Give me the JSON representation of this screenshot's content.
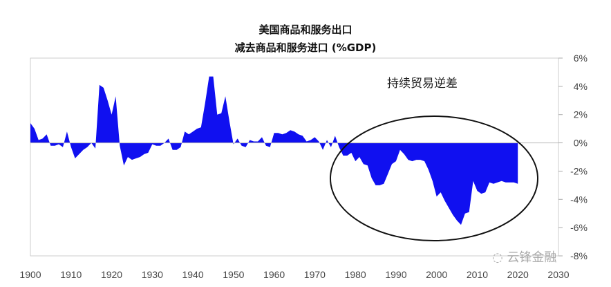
{
  "chart_data": {
    "type": "area",
    "title": [
      "美国商品和服务出口",
      "减去商品和服务进口 (%GDP)"
    ],
    "xlabel": "",
    "ylabel": "",
    "xlim": [
      1900,
      2030
    ],
    "ylim": [
      -8,
      6
    ],
    "x_ticks": [
      "1900",
      "1910",
      "1920",
      "1930",
      "1940",
      "1950",
      "1960",
      "1970",
      "1980",
      "1990",
      "2000",
      "2010",
      "2020",
      "2030"
    ],
    "y_ticks": [
      "6%",
      "4%",
      "2%",
      "0%",
      "-2%",
      "-4%",
      "-6%",
      "-8%"
    ],
    "y_tick_values": [
      6,
      4,
      2,
      0,
      -2,
      -4,
      -6,
      -8
    ],
    "y_axis_side": "right",
    "fill_color": "#1010f0",
    "annotation": "持续贸易逆差",
    "annotation_highlight_years": [
      1976,
      2025
    ],
    "x": [
      1900,
      1901,
      1902,
      1903,
      1904,
      1905,
      1906,
      1907,
      1908,
      1909,
      1910,
      1911,
      1912,
      1913,
      1914,
      1915,
      1916,
      1917,
      1918,
      1919,
      1920,
      1921,
      1922,
      1923,
      1924,
      1925,
      1926,
      1927,
      1928,
      1929,
      1930,
      1931,
      1932,
      1933,
      1934,
      1935,
      1936,
      1937,
      1938,
      1939,
      1940,
      1941,
      1942,
      1943,
      1944,
      1945,
      1946,
      1947,
      1948,
      1949,
      1950,
      1951,
      1952,
      1953,
      1954,
      1955,
      1956,
      1957,
      1958,
      1959,
      1960,
      1961,
      1962,
      1963,
      1964,
      1965,
      1966,
      1967,
      1968,
      1969,
      1970,
      1971,
      1972,
      1973,
      1974,
      1975,
      1976,
      1977,
      1978,
      1979,
      1980,
      1981,
      1982,
      1983,
      1984,
      1985,
      1986,
      1987,
      1988,
      1989,
      1990,
      1991,
      1992,
      1993,
      1994,
      1995,
      1996,
      1997,
      1998,
      1999,
      2000,
      2001,
      2002,
      2003,
      2004,
      2005,
      2006,
      2007,
      2008,
      2009,
      2010,
      2011,
      2012,
      2013,
      2014,
      2015,
      2016,
      2017,
      2018,
      2019,
      2020
    ],
    "values": [
      1.4,
      1.0,
      0.2,
      0.3,
      0.6,
      -0.2,
      -0.2,
      -0.1,
      -0.3,
      0.8,
      -0.3,
      -1.1,
      -0.8,
      -0.5,
      -0.3,
      0.0,
      -0.4,
      4.1,
      3.9,
      3.0,
      2.0,
      3.3,
      -0.2,
      -1.6,
      -1.0,
      -1.2,
      -1.1,
      -1.0,
      -0.8,
      -0.7,
      -0.1,
      -0.2,
      -0.2,
      0.0,
      0.3,
      -0.5,
      -0.5,
      -0.3,
      0.8,
      0.6,
      0.8,
      1.0,
      1.1,
      2.8,
      4.7,
      4.7,
      2.0,
      2.1,
      3.3,
      1.5,
      -0.1,
      0.3,
      -0.2,
      -0.3,
      0.2,
      0.1,
      0.1,
      0.4,
      -0.2,
      -0.3,
      0.7,
      0.7,
      0.6,
      0.7,
      0.9,
      0.8,
      0.6,
      0.5,
      0.1,
      0.2,
      0.4,
      0.1,
      -0.5,
      0.2,
      -0.3,
      0.5,
      -0.3,
      -0.9,
      -0.9,
      -0.7,
      -1.3,
      -1.0,
      -1.5,
      -1.6,
      -2.5,
      -3.0,
      -3.0,
      -2.9,
      -2.2,
      -1.5,
      -1.3,
      -0.5,
      -0.8,
      -1.2,
      -1.3,
      -1.2,
      -1.2,
      -1.3,
      -1.9,
      -2.7,
      -3.8,
      -3.5,
      -4.1,
      -4.6,
      -5.1,
      -5.5,
      -5.8,
      -5.0,
      -4.9,
      -2.7,
      -3.4,
      -3.6,
      -3.5,
      -2.8,
      -2.9,
      -2.8,
      -2.7,
      -2.8,
      -2.8,
      -2.8,
      -2.9
    ]
  },
  "watermark": "云锋金融"
}
